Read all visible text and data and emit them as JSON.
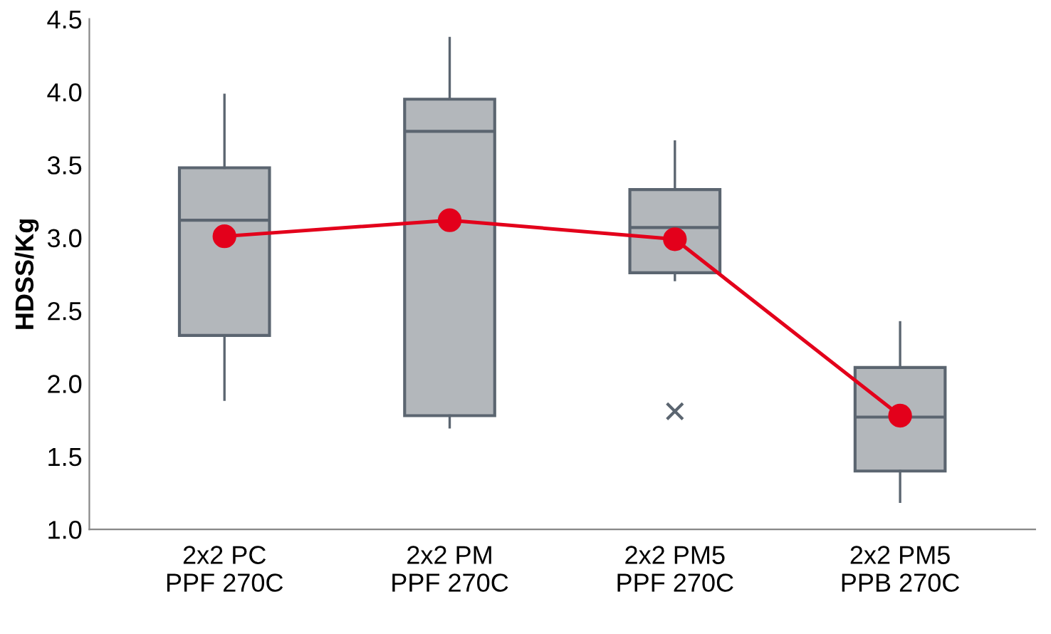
{
  "chart_data": {
    "type": "box",
    "ylabel": "HDSS/Kg",
    "categories": [
      "2x2 PC\nPPF 270C",
      "2x2 PM\nPPF 270C",
      "2x2 PM5\nPPF 270C",
      "2x2 PM5\nPPB 270C"
    ],
    "boxes": [
      {
        "low": 1.89,
        "q1": 2.33,
        "median": 3.12,
        "q3": 3.48,
        "high": 3.98
      },
      {
        "low": 1.7,
        "q1": 1.78,
        "median": 3.73,
        "q3": 3.95,
        "high": 4.37
      },
      {
        "low": 2.71,
        "q1": 2.76,
        "median": 3.07,
        "q3": 3.33,
        "high": 3.66,
        "outliers": [
          1.81
        ]
      },
      {
        "low": 1.19,
        "q1": 1.4,
        "median": 1.77,
        "q3": 2.11,
        "high": 2.42
      }
    ],
    "color": "#b3b7bb",
    "series": [
      {
        "type": "line",
        "color": "#e3001b",
        "values": [
          3.01,
          3.12,
          2.99,
          1.78
        ]
      }
    ],
    "marker": "circle",
    "line_style": "solid",
    "ylim": [
      1.0,
      4.5
    ],
    "yticks": [
      {
        "value": 1.0,
        "label": "1.0"
      },
      {
        "value": 1.5,
        "label": "1.5"
      },
      {
        "value": 2.0,
        "label": "2.0"
      },
      {
        "value": 2.5,
        "label": "2.5"
      },
      {
        "value": 3.0,
        "label": "3.0"
      },
      {
        "value": 3.5,
        "label": "3.5"
      },
      {
        "value": 4.0,
        "label": "4.0"
      },
      {
        "value": 4.5,
        "label": "4.5"
      }
    ],
    "grid": false,
    "legend": false
  }
}
